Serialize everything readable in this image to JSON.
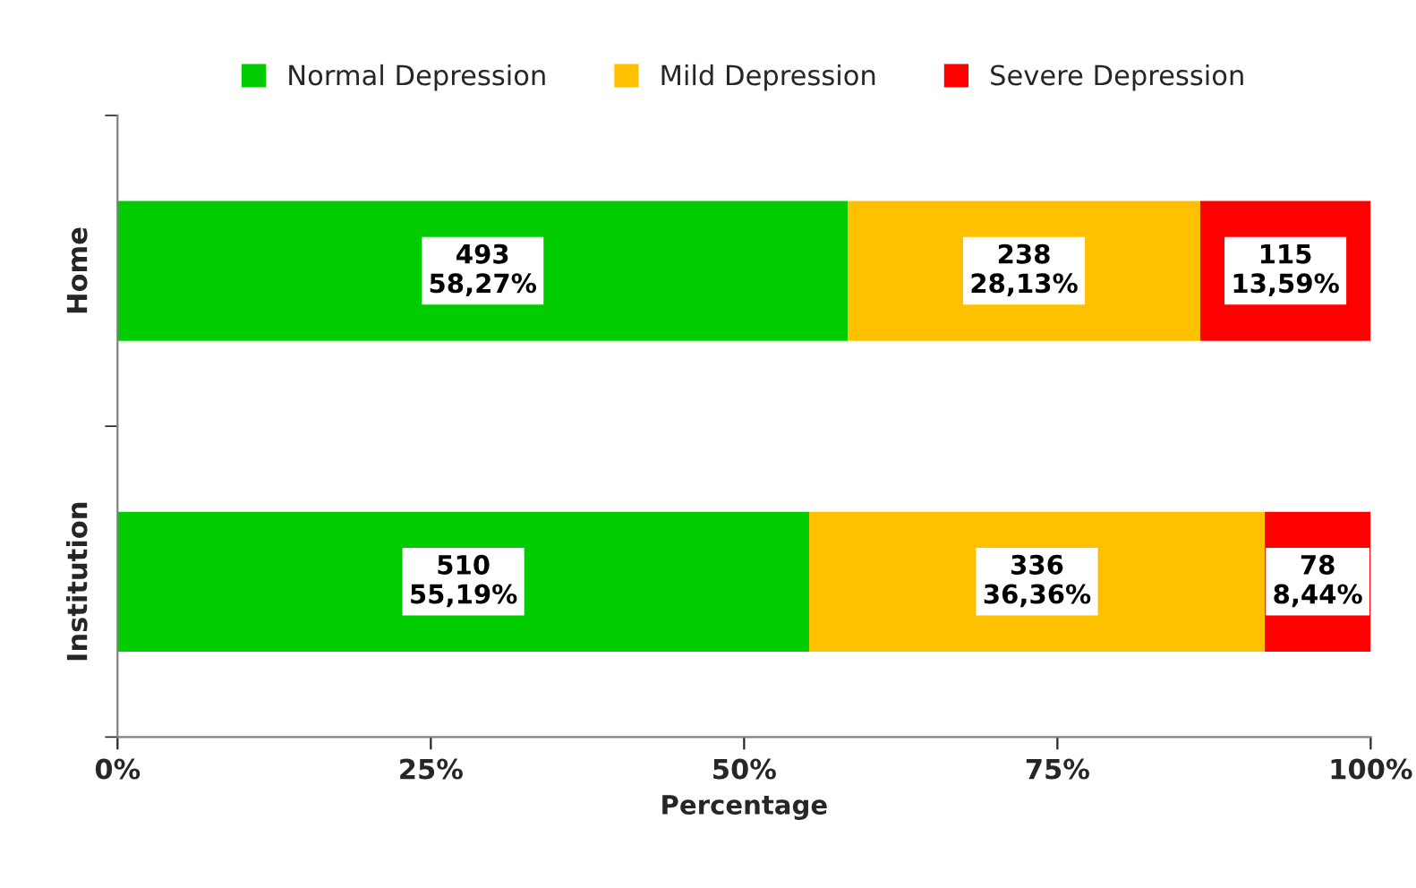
{
  "chart_data": {
    "type": "bar",
    "orientation": "horizontal",
    "stacked": true,
    "xlabel": "Percentage",
    "categories": [
      "Home",
      "Institution"
    ],
    "series": [
      {
        "name": "Normal Depression",
        "color": "#00cc00",
        "values": [
          58.27,
          55.19
        ],
        "value_labels": [
          "493\n58,27%",
          "510\n55,19%"
        ]
      },
      {
        "name": "Mild Depression",
        "color": "#ffc000",
        "values": [
          28.13,
          36.36
        ],
        "value_labels": [
          "238\n28,13%",
          "336\n36,36%"
        ]
      },
      {
        "name": "Severe Depression",
        "color": "#ff0000",
        "values": [
          13.59,
          8.44
        ],
        "value_labels": [
          "115\n13,59%",
          "78\n8,44%"
        ]
      }
    ],
    "xlim": [
      0,
      100
    ],
    "xticks": [
      {
        "value": 0,
        "label": "0%"
      },
      {
        "value": 25,
        "label": "25%"
      },
      {
        "value": 50,
        "label": "50%"
      },
      {
        "value": 75,
        "label": "75%"
      },
      {
        "value": 100,
        "label": "100%"
      }
    ],
    "legend": "top",
    "grid": false
  }
}
